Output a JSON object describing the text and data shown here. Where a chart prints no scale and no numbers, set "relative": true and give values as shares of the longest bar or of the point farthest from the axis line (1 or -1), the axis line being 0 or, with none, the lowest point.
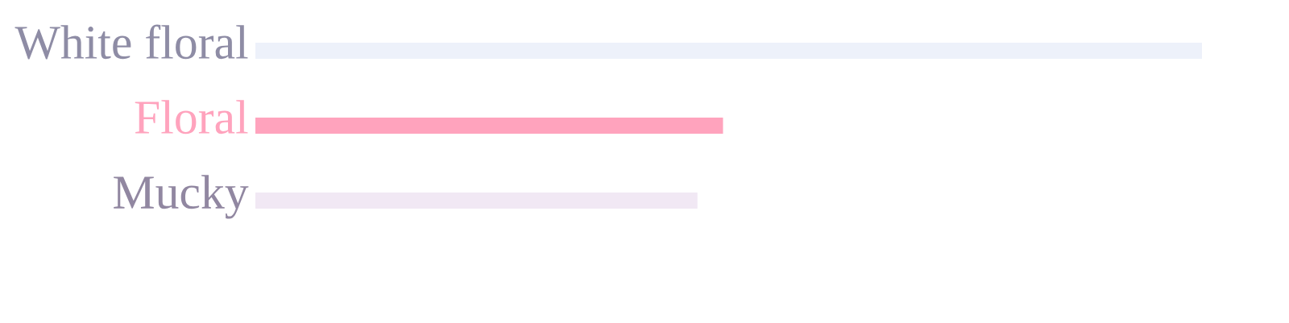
{
  "chart_data": {
    "type": "bar",
    "orientation": "horizontal",
    "relative": true,
    "categories": [
      "White floral",
      "Floral",
      "Mucky"
    ],
    "values": [
      1,
      0.494,
      0.467
    ],
    "colors": [
      "#edf1fa",
      "#ffa3bd",
      "#f1e8f4"
    ]
  }
}
